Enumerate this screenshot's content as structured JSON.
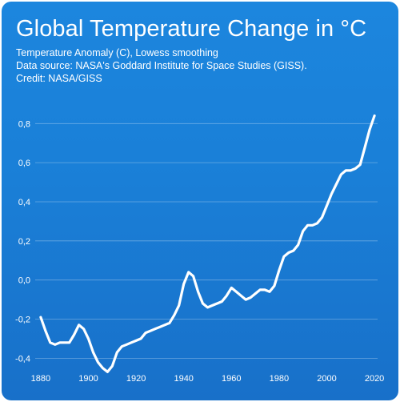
{
  "chart_data": {
    "type": "line",
    "title": "Global Temperature Change in °C",
    "subtitle": "Temperature Anomaly (C), Lowess smoothing",
    "source": "Data source: NASA's Goddard Institute for Space Studies (GISS).",
    "credit": "Credit: NASA/GISS",
    "xlabel": "",
    "ylabel": "",
    "xlim": [
      1876,
      2024
    ],
    "ylim": [
      -0.46,
      0.92
    ],
    "x_ticks": [
      1880,
      1900,
      1920,
      1940,
      1960,
      1980,
      2000,
      2020
    ],
    "y_ticks": [
      0.8,
      0.6,
      0.4,
      0.2,
      0.0,
      -0.2,
      -0.4
    ],
    "y_tick_labels": [
      "0,8",
      "0,6",
      "0,4",
      "0,2",
      "0,0",
      "-0,2",
      "-0,4"
    ],
    "grid": "horizontal",
    "line_color": "#ffffff",
    "series": [
      {
        "x": [
          1880,
          1882,
          1884,
          1886,
          1888,
          1890,
          1892,
          1894,
          1896,
          1898,
          1900,
          1902,
          1904,
          1906,
          1908,
          1910,
          1912,
          1914,
          1916,
          1918,
          1920,
          1922,
          1924,
          1926,
          1928,
          1930,
          1932,
          1934,
          1936,
          1938,
          1940,
          1942,
          1944,
          1946,
          1948,
          1950,
          1952,
          1954,
          1956,
          1958,
          1960,
          1962,
          1964,
          1966,
          1968,
          1970,
          1972,
          1974,
          1976,
          1978,
          1980,
          1982,
          1984,
          1986,
          1988,
          1990,
          1992,
          1994,
          1996,
          1998,
          2000,
          2002,
          2004,
          2006,
          2008,
          2010,
          2012,
          2014,
          2016,
          2018,
          2020
        ],
        "y": [
          -0.19,
          -0.26,
          -0.32,
          -0.33,
          -0.32,
          -0.32,
          -0.32,
          -0.28,
          -0.23,
          -0.25,
          -0.3,
          -0.37,
          -0.42,
          -0.45,
          -0.47,
          -0.44,
          -0.37,
          -0.34,
          -0.33,
          -0.32,
          -0.31,
          -0.3,
          -0.27,
          -0.26,
          -0.25,
          -0.24,
          -0.23,
          -0.22,
          -0.18,
          -0.13,
          -0.02,
          0.04,
          0.02,
          -0.06,
          -0.12,
          -0.14,
          -0.13,
          -0.12,
          -0.11,
          -0.08,
          -0.04,
          -0.06,
          -0.08,
          -0.1,
          -0.09,
          -0.07,
          -0.05,
          -0.05,
          -0.06,
          -0.03,
          0.05,
          0.12,
          0.14,
          0.15,
          0.18,
          0.25,
          0.28,
          0.28,
          0.29,
          0.32,
          0.38,
          0.44,
          0.49,
          0.54,
          0.56,
          0.56,
          0.57,
          0.59,
          0.68,
          0.77,
          0.84
        ]
      }
    ]
  }
}
